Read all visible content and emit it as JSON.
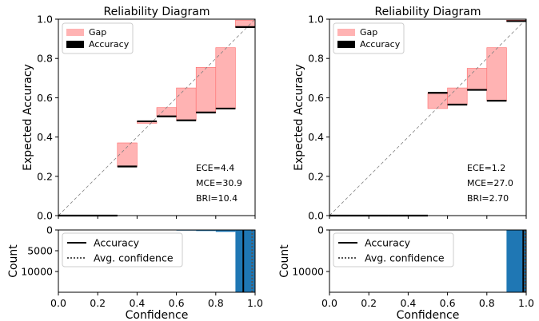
{
  "colors": {
    "gap": "#ffb3b3",
    "gap_edge": "#ff6b6b",
    "accuracy": "#000000",
    "histogram": "#1f77b4",
    "diagonal": "#808080"
  },
  "chart_data": [
    {
      "type": "bar",
      "title": "Reliability Diagram",
      "xlabel": "",
      "ylabel": "Expected Accuracy",
      "xlim": [
        0.0,
        1.0
      ],
      "ylim": [
        0.0,
        1.0
      ],
      "xticks": [
        "0.0",
        "0.2",
        "0.4",
        "0.6",
        "0.8",
        "1.0"
      ],
      "yticks": [
        "0.0",
        "0.2",
        "0.4",
        "0.6",
        "0.8",
        "1.0"
      ],
      "legend": [
        "Gap",
        "Accuracy"
      ],
      "legend_position": "top-left",
      "diagonal": true,
      "bins": [
        {
          "lo": 0.0,
          "hi": 0.1,
          "accuracy": 0.0
        },
        {
          "lo": 0.1,
          "hi": 0.2,
          "accuracy": 0.0
        },
        {
          "lo": 0.2,
          "hi": 0.3,
          "accuracy": 0.0
        },
        {
          "lo": 0.3,
          "hi": 0.4,
          "accuracy": 0.25,
          "confidence": 0.37
        },
        {
          "lo": 0.4,
          "hi": 0.5,
          "accuracy": 0.48,
          "confidence": 0.47
        },
        {
          "lo": 0.5,
          "hi": 0.6,
          "accuracy": 0.505,
          "confidence": 0.55
        },
        {
          "lo": 0.6,
          "hi": 0.7,
          "accuracy": 0.485,
          "confidence": 0.65
        },
        {
          "lo": 0.7,
          "hi": 0.8,
          "accuracy": 0.525,
          "confidence": 0.755
        },
        {
          "lo": 0.8,
          "hi": 0.9,
          "accuracy": 0.545,
          "confidence": 0.855
        },
        {
          "lo": 0.9,
          "hi": 1.0,
          "accuracy": 0.96,
          "confidence": 0.995
        }
      ],
      "annotations": [
        "ECE=4.4",
        "MCE=30.9",
        "BRI=10.4"
      ]
    },
    {
      "type": "bar",
      "title": "",
      "xlabel": "Confidence",
      "ylabel": "Count",
      "xlim": [
        0.0,
        1.0
      ],
      "ylim": [
        15000,
        0
      ],
      "xticks": [
        "0.0",
        "0.2",
        "0.4",
        "0.6",
        "0.8",
        "1.0"
      ],
      "yticks": [
        "0",
        "5000",
        "10000"
      ],
      "legend": [
        "Accuracy",
        "Avg. confidence"
      ],
      "legend_position": "top-left",
      "bins": [
        {
          "lo": 0.5,
          "hi": 0.6,
          "count": 80
        },
        {
          "lo": 0.6,
          "hi": 0.7,
          "count": 150
        },
        {
          "lo": 0.7,
          "hi": 0.8,
          "count": 250
        },
        {
          "lo": 0.8,
          "hi": 0.9,
          "count": 450
        },
        {
          "lo": 0.9,
          "hi": 1.0,
          "count": 15000
        }
      ],
      "accuracy_line": 0.94,
      "avg_confidence_line": 0.985
    },
    {
      "type": "bar",
      "title": "Reliability Diagram",
      "xlabel": "",
      "ylabel": "Expected Accuracy",
      "xlim": [
        0.0,
        1.0
      ],
      "ylim": [
        0.0,
        1.0
      ],
      "xticks": [
        "0.0",
        "0.2",
        "0.4",
        "0.6",
        "0.8",
        "1.0"
      ],
      "yticks": [
        "0.0",
        "0.2",
        "0.4",
        "0.6",
        "0.8",
        "1.0"
      ],
      "legend": [
        "Gap",
        "Accuracy"
      ],
      "legend_position": "top-left",
      "diagonal": true,
      "bins": [
        {
          "lo": 0.0,
          "hi": 0.1,
          "accuracy": 0.0
        },
        {
          "lo": 0.1,
          "hi": 0.2,
          "accuracy": 0.0
        },
        {
          "lo": 0.2,
          "hi": 0.3,
          "accuracy": 0.0
        },
        {
          "lo": 0.3,
          "hi": 0.4,
          "accuracy": 0.0
        },
        {
          "lo": 0.4,
          "hi": 0.5,
          "accuracy": 0.0
        },
        {
          "lo": 0.5,
          "hi": 0.6,
          "accuracy": 0.625,
          "confidence": 0.545
        },
        {
          "lo": 0.6,
          "hi": 0.7,
          "accuracy": 0.565,
          "confidence": 0.65
        },
        {
          "lo": 0.7,
          "hi": 0.8,
          "accuracy": 0.64,
          "confidence": 0.75
        },
        {
          "lo": 0.8,
          "hi": 0.9,
          "accuracy": 0.585,
          "confidence": 0.855
        },
        {
          "lo": 0.9,
          "hi": 1.0,
          "accuracy": 0.99,
          "confidence": 0.995
        }
      ],
      "annotations": [
        "ECE=1.2",
        "MCE=27.0",
        "BRI=2.70"
      ]
    },
    {
      "type": "bar",
      "title": "",
      "xlabel": "Confidence",
      "ylabel": "Count",
      "xlim": [
        0.0,
        1.0
      ],
      "ylim": [
        15000,
        0
      ],
      "xticks": [
        "0.0",
        "0.2",
        "0.4",
        "0.6",
        "0.8",
        "1.0"
      ],
      "yticks": [
        "0",
        "10000"
      ],
      "legend": [
        "Accuracy",
        "Avg. confidence"
      ],
      "legend_position": "top-left",
      "bins": [
        {
          "lo": 0.9,
          "hi": 1.0,
          "count": 15000
        }
      ],
      "accuracy_line": 0.985,
      "avg_confidence_line": 0.995
    }
  ]
}
